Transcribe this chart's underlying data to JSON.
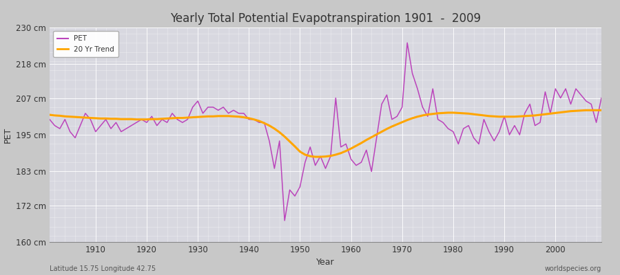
{
  "title": "Yearly Total Potential Evapotranspiration 1901  -  2009",
  "xlabel": "Year",
  "ylabel": "PET",
  "lat_lon_label": "Latitude 15.75 Longitude 42.75",
  "source_label": "worldspecies.org",
  "pet_color": "#bb44bb",
  "trend_color": "#ffa500",
  "fig_bg_color": "#c8c8c8",
  "plot_bg_color": "#d8d8e0",
  "ylim": [
    160,
    230
  ],
  "yticks": [
    160,
    172,
    183,
    195,
    207,
    218,
    230
  ],
  "ytick_labels": [
    "160 cm",
    "172 cm",
    "183 cm",
    "195 cm",
    "207 cm",
    "218 cm",
    "230 cm"
  ],
  "xlim": [
    1901,
    2009
  ],
  "xticks": [
    1910,
    1920,
    1930,
    1940,
    1950,
    1960,
    1970,
    1980,
    1990,
    2000
  ],
  "years": [
    1901,
    1902,
    1903,
    1904,
    1905,
    1906,
    1907,
    1908,
    1909,
    1910,
    1911,
    1912,
    1913,
    1914,
    1915,
    1916,
    1917,
    1918,
    1919,
    1920,
    1921,
    1922,
    1923,
    1924,
    1925,
    1926,
    1927,
    1928,
    1929,
    1930,
    1931,
    1932,
    1933,
    1934,
    1935,
    1936,
    1937,
    1938,
    1939,
    1940,
    1941,
    1942,
    1943,
    1944,
    1945,
    1946,
    1947,
    1948,
    1949,
    1950,
    1951,
    1952,
    1953,
    1954,
    1955,
    1956,
    1957,
    1958,
    1959,
    1960,
    1961,
    1962,
    1963,
    1964,
    1965,
    1966,
    1967,
    1968,
    1969,
    1970,
    1971,
    1972,
    1973,
    1974,
    1975,
    1976,
    1977,
    1978,
    1979,
    1980,
    1981,
    1982,
    1983,
    1984,
    1985,
    1986,
    1987,
    1988,
    1989,
    1990,
    1991,
    1992,
    1993,
    1994,
    1995,
    1996,
    1997,
    1998,
    1999,
    2000,
    2001,
    2002,
    2003,
    2004,
    2005,
    2006,
    2007,
    2008,
    2009
  ],
  "pet": [
    200,
    198,
    197,
    200,
    196,
    194,
    198,
    202,
    200,
    196,
    198,
    200,
    197,
    199,
    196,
    197,
    198,
    199,
    200,
    199,
    201,
    198,
    200,
    199,
    202,
    200,
    199,
    200,
    204,
    206,
    202,
    204,
    204,
    203,
    204,
    202,
    203,
    202,
    202,
    200,
    200,
    199,
    199,
    193,
    184,
    193,
    167,
    177,
    175,
    178,
    186,
    191,
    185,
    188,
    184,
    188,
    207,
    191,
    192,
    187,
    185,
    186,
    190,
    183,
    194,
    205,
    208,
    200,
    201,
    204,
    225,
    215,
    210,
    204,
    201,
    210,
    200,
    199,
    197,
    196,
    192,
    197,
    198,
    194,
    192,
    200,
    196,
    193,
    196,
    201,
    195,
    198,
    195,
    202,
    205,
    198,
    199,
    209,
    202,
    210,
    207,
    210,
    205,
    210,
    208,
    206,
    205,
    199,
    207
  ],
  "trend": [
    201.5,
    201.3,
    201.2,
    201.0,
    200.9,
    200.8,
    200.7,
    200.6,
    200.5,
    200.4,
    200.3,
    200.3,
    200.2,
    200.2,
    200.1,
    200.1,
    200.1,
    200.0,
    200.0,
    200.0,
    200.1,
    200.1,
    200.2,
    200.3,
    200.4,
    200.5,
    200.5,
    200.6,
    200.7,
    200.8,
    200.9,
    201.0,
    201.0,
    201.1,
    201.1,
    201.1,
    201.0,
    200.9,
    200.7,
    200.4,
    200.0,
    199.5,
    198.8,
    198.0,
    197.0,
    195.8,
    194.4,
    192.8,
    191.2,
    189.5,
    188.5,
    188.0,
    187.8,
    187.8,
    187.9,
    188.1,
    188.5,
    189.0,
    189.7,
    190.5,
    191.4,
    192.3,
    193.3,
    194.2,
    195.1,
    196.0,
    196.9,
    197.7,
    198.4,
    199.1,
    199.8,
    200.4,
    200.9,
    201.3,
    201.6,
    201.8,
    202.0,
    202.1,
    202.2,
    202.2,
    202.1,
    202.0,
    201.9,
    201.7,
    201.5,
    201.3,
    201.1,
    201.0,
    200.9,
    200.9,
    200.9,
    200.9,
    201.0,
    201.1,
    201.2,
    201.3,
    201.5,
    201.7,
    201.9,
    202.1,
    202.3,
    202.5,
    202.7,
    202.8,
    202.9,
    203.0,
    203.0,
    203.0,
    203.0
  ]
}
